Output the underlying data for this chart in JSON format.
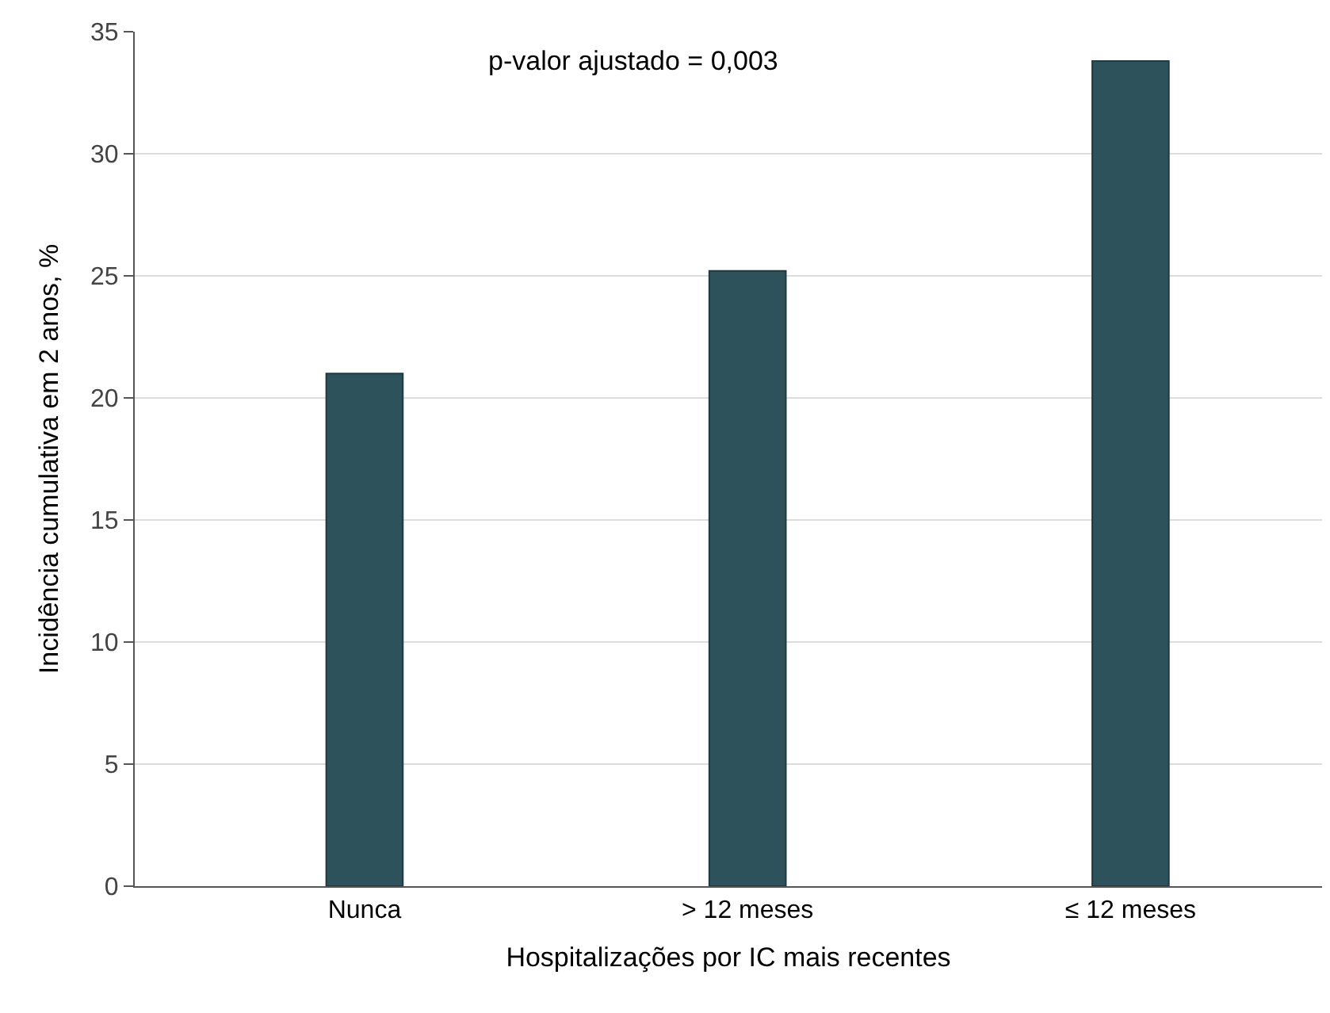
{
  "chart_data": {
    "type": "bar",
    "xlabel": "Hospitalizações por IC mais recentes",
    "ylabel": "Incidência cumulativa em 2 anos, %",
    "categories": [
      "Nunca",
      "> 12 meses",
      "≤ 12 meses"
    ],
    "values": [
      21.0,
      25.2,
      33.8
    ],
    "color": "#2e525b",
    "ylim": [
      0,
      35
    ],
    "yticks": [
      0,
      5,
      10,
      15,
      20,
      25,
      30,
      35
    ],
    "grid": "y",
    "annotations": [
      "p-valor ajustado = 0,003"
    ]
  }
}
